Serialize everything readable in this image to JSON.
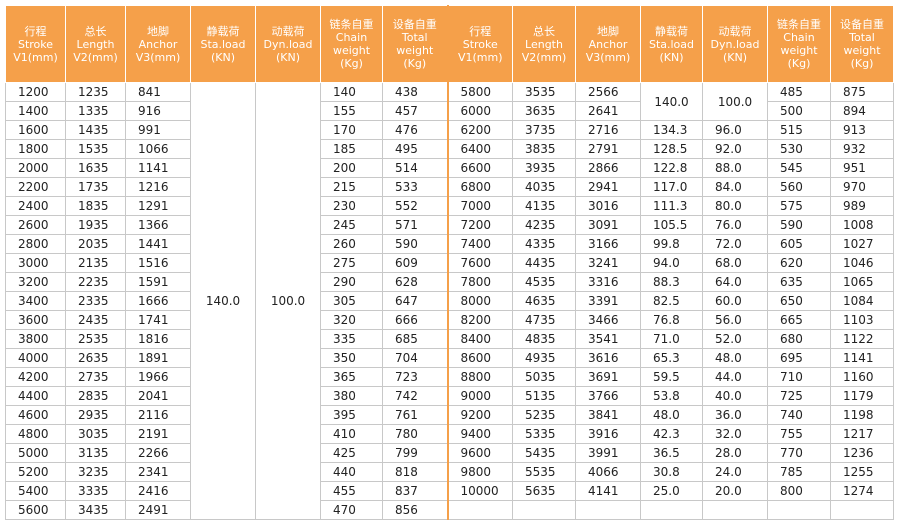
{
  "table": {
    "headers": [
      [
        "行程",
        "Stroke",
        "V1(mm)"
      ],
      [
        "总长",
        "Length",
        "V2(mm)"
      ],
      [
        "地脚",
        "Anchor",
        "V3(mm)"
      ],
      [
        "静载荷",
        "Sta.load",
        "(KN)"
      ],
      [
        "动载荷",
        "Dyn.load",
        "(KN)"
      ],
      [
        "链条自重",
        "Chain",
        "weight",
        "(Kg)"
      ],
      [
        "设备自重",
        "Total",
        "weight",
        "(Kg)"
      ],
      [
        "行程",
        "Stroke",
        "V1(mm)"
      ],
      [
        "总长",
        "Length",
        "V2(mm)"
      ],
      [
        "地脚",
        "Anchor",
        "V3(mm)"
      ],
      [
        "静载荷",
        "Sta.load",
        "(KN)"
      ],
      [
        "动载荷",
        "Dyn.load",
        "(KN)"
      ],
      [
        "链条自重",
        "Chain",
        "weight",
        "(Kg)"
      ],
      [
        "设备自重",
        "Total",
        "weight",
        "(Kg)"
      ]
    ],
    "left_load": [
      "140.0",
      "100.0"
    ],
    "left_rows": [
      [
        "1200",
        "1235",
        "841",
        "140",
        "438"
      ],
      [
        "1400",
        "1335",
        "916",
        "155",
        "457"
      ],
      [
        "1600",
        "1435",
        "991",
        "170",
        "476"
      ],
      [
        "1800",
        "1535",
        "1066",
        "185",
        "495"
      ],
      [
        "2000",
        "1635",
        "1141",
        "200",
        "514"
      ],
      [
        "2200",
        "1735",
        "1216",
        "215",
        "533"
      ],
      [
        "2400",
        "1835",
        "1291",
        "230",
        "552"
      ],
      [
        "2600",
        "1935",
        "1366",
        "245",
        "571"
      ],
      [
        "2800",
        "2035",
        "1441",
        "260",
        "590"
      ],
      [
        "3000",
        "2135",
        "1516",
        "275",
        "609"
      ],
      [
        "3200",
        "2235",
        "1591",
        "290",
        "628"
      ],
      [
        "3400",
        "2335",
        "1666",
        "305",
        "647"
      ],
      [
        "3600",
        "2435",
        "1741",
        "320",
        "666"
      ],
      [
        "3800",
        "2535",
        "1816",
        "335",
        "685"
      ],
      [
        "4000",
        "2635",
        "1891",
        "350",
        "704"
      ],
      [
        "4200",
        "2735",
        "1966",
        "365",
        "723"
      ],
      [
        "4400",
        "2835",
        "2041",
        "380",
        "742"
      ],
      [
        "4600",
        "2935",
        "2116",
        "395",
        "761"
      ],
      [
        "4800",
        "3035",
        "2191",
        "410",
        "780"
      ],
      [
        "5000",
        "3135",
        "2266",
        "425",
        "799"
      ],
      [
        "5200",
        "3235",
        "2341",
        "440",
        "818"
      ],
      [
        "5400",
        "3335",
        "2416",
        "455",
        "837"
      ],
      [
        "5600",
        "3435",
        "2491",
        "470",
        "856"
      ]
    ],
    "right_rows": [
      [
        "5800",
        "3535",
        "2566",
        "140.0",
        "100.0",
        "485",
        "875"
      ],
      [
        "6000",
        "3635",
        "2641",
        "500",
        "894"
      ],
      [
        "6200",
        "3735",
        "2716",
        "134.3",
        "96.0",
        "515",
        "913"
      ],
      [
        "6400",
        "3835",
        "2791",
        "128.5",
        "92.0",
        "530",
        "932"
      ],
      [
        "6600",
        "3935",
        "2866",
        "122.8",
        "88.0",
        "545",
        "951"
      ],
      [
        "6800",
        "4035",
        "2941",
        "117.0",
        "84.0",
        "560",
        "970"
      ],
      [
        "7000",
        "4135",
        "3016",
        "111.3",
        "80.0",
        "575",
        "989"
      ],
      [
        "7200",
        "4235",
        "3091",
        "105.5",
        "76.0",
        "590",
        "1008"
      ],
      [
        "7400",
        "4335",
        "3166",
        "99.8",
        "72.0",
        "605",
        "1027"
      ],
      [
        "7600",
        "4435",
        "3241",
        "94.0",
        "68.0",
        "620",
        "1046"
      ],
      [
        "7800",
        "4535",
        "3316",
        "88.3",
        "64.0",
        "635",
        "1065"
      ],
      [
        "8000",
        "4635",
        "3391",
        "82.5",
        "60.0",
        "650",
        "1084"
      ],
      [
        "8200",
        "4735",
        "3466",
        "76.8",
        "56.0",
        "665",
        "1103"
      ],
      [
        "8400",
        "4835",
        "3541",
        "71.0",
        "52.0",
        "680",
        "1122"
      ],
      [
        "8600",
        "4935",
        "3616",
        "65.3",
        "48.0",
        "695",
        "1141"
      ],
      [
        "8800",
        "5035",
        "3691",
        "59.5",
        "44.0",
        "710",
        "1160"
      ],
      [
        "9000",
        "5135",
        "3766",
        "53.8",
        "40.0",
        "725",
        "1179"
      ],
      [
        "9200",
        "5235",
        "3841",
        "48.0",
        "36.0",
        "740",
        "1198"
      ],
      [
        "9400",
        "5335",
        "3916",
        "42.3",
        "32.0",
        "755",
        "1217"
      ],
      [
        "9600",
        "5435",
        "3991",
        "36.5",
        "28.0",
        "770",
        "1236"
      ],
      [
        "9800",
        "5535",
        "4066",
        "30.8",
        "24.0",
        "785",
        "1255"
      ],
      [
        "10000",
        "5635",
        "4141",
        "25.0",
        "20.0",
        "800",
        "1274"
      ]
    ]
  }
}
